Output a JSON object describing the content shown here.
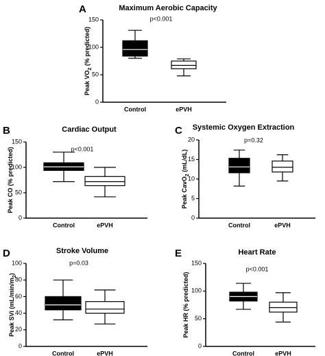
{
  "chart_data": [
    {
      "letter": "A",
      "type": "boxplot",
      "title": "Maximum Aerobic Capacity",
      "ylabel": "Peak VO2 (% predicted)",
      "ylabel_main": "Peak VO",
      "ylabel_sub": "2",
      "ylabel_rest": " (% predicted)",
      "pvalue": "p<0.001",
      "ylim": [
        0,
        150
      ],
      "yticks": [
        0,
        50,
        100,
        150
      ],
      "tick_labels": [
        "0",
        "50",
        "100",
        "150"
      ],
      "categories": [
        "Control",
        "ePVH"
      ],
      "fills": [
        "#000000",
        "#ffffff"
      ],
      "boxes": [
        {
          "group": "Control",
          "min": 80,
          "q1": 84,
          "median": 96,
          "q3": 112,
          "max": 131
        },
        {
          "group": "ePVH",
          "min": 48,
          "q1": 61,
          "median": 67,
          "q3": 75,
          "max": 79
        }
      ]
    },
    {
      "letter": "B",
      "type": "boxplot",
      "title": "Cardiac Output",
      "ylabel": "Peak CO (% predicted)",
      "ylabel_main": "Peak CO (% predicted)",
      "ylabel_sub": "",
      "ylabel_rest": "",
      "pvalue": "p<0.001",
      "ylim": [
        0,
        150
      ],
      "yticks": [
        0,
        50,
        100,
        150
      ],
      "tick_labels": [
        "0",
        "50",
        "100",
        "150"
      ],
      "categories": [
        "Control",
        "ePVH"
      ],
      "fills": [
        "#000000",
        "#ffffff"
      ],
      "boxes": [
        {
          "group": "Control",
          "min": 72,
          "q1": 94,
          "median": 101,
          "q3": 109,
          "max": 130
        },
        {
          "group": "ePVH",
          "min": 42,
          "q1": 64,
          "median": 72,
          "q3": 82,
          "max": 100
        }
      ]
    },
    {
      "letter": "C",
      "type": "boxplot",
      "title": "Systemic Oxygen Extraction",
      "ylabel": "Peak CavO2 (mL/dL)",
      "ylabel_main": "Peak CavO",
      "ylabel_sub": "2",
      "ylabel_rest": " (mL/dL)",
      "pvalue": "p=0.32",
      "ylim": [
        0,
        20
      ],
      "yticks": [
        0,
        5,
        10,
        15,
        20
      ],
      "tick_labels": [
        "0",
        "5",
        "10",
        "15",
        "20"
      ],
      "categories": [
        "Control",
        "ePVH"
      ],
      "fills": [
        "#000000",
        "#ffffff"
      ],
      "boxes": [
        {
          "group": "Control",
          "min": 8.2,
          "q1": 11.6,
          "median": 13.1,
          "q3": 15.3,
          "max": 17.4
        },
        {
          "group": "ePVH",
          "min": 9.5,
          "q1": 11.8,
          "median": 13.0,
          "q3": 14.6,
          "max": 16.2
        }
      ]
    },
    {
      "letter": "D",
      "type": "boxplot",
      "title": "Stroke Volume",
      "ylabel": "Peak SVi (mL/min/m2)",
      "ylabel_main": "Peak SVi (mL/min/m",
      "ylabel_sub": "2",
      "ylabel_rest": ")",
      "pvalue": "p=0.03",
      "ylim": [
        0,
        100
      ],
      "yticks": [
        0,
        20,
        40,
        60,
        80,
        100
      ],
      "tick_labels": [
        "0",
        "20",
        "40",
        "60",
        "80",
        "100"
      ],
      "categories": [
        "Control",
        "ePVH"
      ],
      "fills": [
        "#000000",
        "#ffffff"
      ],
      "boxes": [
        {
          "group": "Control",
          "min": 32,
          "q1": 44,
          "median": 50,
          "q3": 60,
          "max": 80
        },
        {
          "group": "ePVH",
          "min": 27,
          "q1": 40,
          "median": 45,
          "q3": 54,
          "max": 68
        }
      ]
    },
    {
      "letter": "E",
      "type": "boxplot",
      "title": "Heart Rate",
      "ylabel": "Peak HR (% predicted)",
      "ylabel_main": "Peak HR (% predicted)",
      "ylabel_sub": "",
      "ylabel_rest": "",
      "pvalue": "p<0.001",
      "ylim": [
        0,
        150
      ],
      "yticks": [
        0,
        50,
        100,
        150
      ],
      "tick_labels": [
        "0",
        "50",
        "100",
        "150"
      ],
      "categories": [
        "Control",
        "ePVH"
      ],
      "fills": [
        "#000000",
        "#ffffff"
      ],
      "boxes": [
        {
          "group": "Control",
          "min": 67,
          "q1": 82,
          "median": 90,
          "q3": 98,
          "max": 114
        },
        {
          "group": "ePVH",
          "min": 44,
          "q1": 62,
          "median": 70,
          "q3": 80,
          "max": 97
        }
      ]
    }
  ]
}
